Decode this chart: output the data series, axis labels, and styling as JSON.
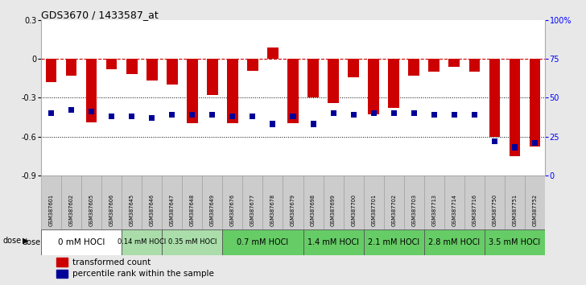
{
  "title": "GDS3670 / 1433587_at",
  "samples": [
    "GSM387601",
    "GSM387602",
    "GSM387605",
    "GSM387606",
    "GSM387645",
    "GSM387646",
    "GSM387647",
    "GSM387648",
    "GSM387649",
    "GSM387676",
    "GSM387677",
    "GSM387678",
    "GSM387679",
    "GSM387698",
    "GSM387699",
    "GSM387700",
    "GSM387701",
    "GSM387702",
    "GSM387703",
    "GSM387713",
    "GSM387714",
    "GSM387716",
    "GSM387750",
    "GSM387751",
    "GSM387752"
  ],
  "red_values": [
    -0.18,
    -0.13,
    -0.49,
    -0.08,
    -0.12,
    -0.17,
    -0.2,
    -0.5,
    -0.28,
    -0.5,
    -0.09,
    0.09,
    -0.5,
    -0.3,
    -0.34,
    -0.14,
    -0.43,
    -0.38,
    -0.13,
    -0.1,
    -0.06,
    -0.1,
    -0.6,
    -0.75,
    -0.68
  ],
  "blue_percentile": [
    40,
    42,
    41,
    38,
    38,
    37,
    39,
    39,
    39,
    38,
    38,
    33,
    38,
    33,
    40,
    39,
    40,
    40,
    40,
    39,
    39,
    39,
    22,
    18,
    21
  ],
  "dose_groups": [
    {
      "label": "0 mM HOCl",
      "start": 0,
      "end": 4,
      "color": "#ffffff",
      "fontsize": 7.5
    },
    {
      "label": "0.14 mM HOCl",
      "start": 4,
      "end": 6,
      "color": "#aaddaa",
      "fontsize": 6
    },
    {
      "label": "0.35 mM HOCl",
      "start": 6,
      "end": 9,
      "color": "#aaddaa",
      "fontsize": 6
    },
    {
      "label": "0.7 mM HOCl",
      "start": 9,
      "end": 13,
      "color": "#66cc66",
      "fontsize": 7
    },
    {
      "label": "1.4 mM HOCl",
      "start": 13,
      "end": 16,
      "color": "#66cc66",
      "fontsize": 7
    },
    {
      "label": "2.1 mM HOCl",
      "start": 16,
      "end": 19,
      "color": "#66cc66",
      "fontsize": 7
    },
    {
      "label": "2.8 mM HOCl",
      "start": 19,
      "end": 22,
      "color": "#66cc66",
      "fontsize": 7
    },
    {
      "label": "3.5 mM HOCl",
      "start": 22,
      "end": 25,
      "color": "#66cc66",
      "fontsize": 7
    }
  ],
  "ylim_left": [
    -0.9,
    0.3
  ],
  "ylim_right": [
    0,
    100
  ],
  "yticks_left": [
    -0.9,
    -0.6,
    -0.3,
    0.0,
    0.3
  ],
  "ytick_left_labels": [
    "-0.9",
    "-0.6",
    "-0.3",
    "0",
    "0.3"
  ],
  "yticks_right": [
    0,
    25,
    50,
    75,
    100
  ],
  "ytick_right_labels": [
    "0",
    "25",
    "50",
    "75",
    "100%"
  ],
  "red_color": "#cc0000",
  "blue_color": "#000099",
  "bg_color": "#e8e8e8",
  "plot_bg_color": "#ffffff",
  "hline_color": "#cc0000",
  "sample_cell_color": "#cccccc",
  "sample_cell_edge": "#999999"
}
